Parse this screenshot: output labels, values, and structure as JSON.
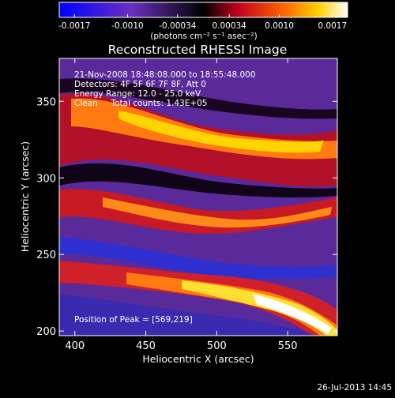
{
  "chart_data": {
    "type": "heatmap",
    "title": "Reconstructed RHESSI Image",
    "xlabel": "Heliocentric X (arcsec)",
    "ylabel": "Heliocentric Y (arcsec)",
    "xlim": [
      389,
      585
    ],
    "ylim": [
      197,
      378
    ],
    "x_ticks": [
      400,
      450,
      500,
      550
    ],
    "y_ticks": [
      200,
      250,
      300,
      350
    ],
    "colorbar": {
      "orientation": "horizontal",
      "placement": "top",
      "range": [
        -0.0019,
        0.0019
      ],
      "ticks": [
        {
          "value": -0.0017,
          "label": "-0.0017"
        },
        {
          "value": -0.001,
          "label": "-0.0010"
        },
        {
          "value": -0.00034,
          "label": "-0.00034"
        },
        {
          "value": 0.00034,
          "label": "0.00034"
        },
        {
          "value": 0.001,
          "label": "0.0010"
        },
        {
          "value": 0.0017,
          "label": "0.0017"
        }
      ],
      "unit_label": "(photons cm⁻² s⁻¹ asec⁻²)",
      "colors": [
        "#0000ff",
        "#6b2fbf",
        "#000000",
        "#c2001e",
        "#ff6600",
        "#ffd200",
        "#ffffff"
      ]
    },
    "annotations": [
      "21-Nov-2008 18:48:08.000 to 18:55:48.000",
      "Detectors: 4F 5F 6F 7F 8F, Att 0",
      "Energy Range: 12.0 - 25.0 keV",
      "Clean     Total counts: 1.43E+05"
    ],
    "peak_label": "Position of Peak = [569,219]",
    "peak": [
      569,
      219
    ],
    "timestamp": "26-Jul-2013 14:45"
  }
}
